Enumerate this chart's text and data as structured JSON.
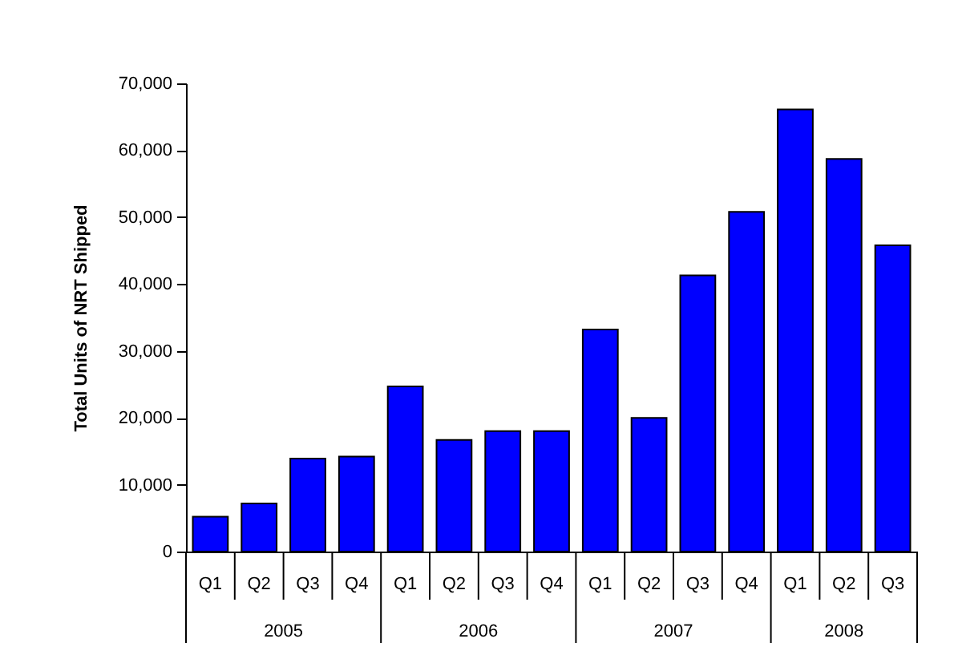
{
  "chart_data": {
    "type": "bar",
    "ylabel": "Total Units of NRT Shipped",
    "categories": [
      "Q1",
      "Q2",
      "Q3",
      "Q4",
      "Q1",
      "Q2",
      "Q3",
      "Q4",
      "Q1",
      "Q2",
      "Q3",
      "Q4",
      "Q1",
      "Q2",
      "Q3"
    ],
    "values": [
      5200,
      7200,
      13900,
      14200,
      24700,
      16700,
      18000,
      18000,
      33200,
      20000,
      41300,
      50800,
      66100,
      58700,
      45800
    ],
    "color": "#0000ff",
    "ylim": [
      0,
      70000
    ],
    "yticks": [
      0,
      {
        "value": 10000,
        "label": "10,000"
      },
      {
        "value": 20000,
        "label": "20,000"
      },
      {
        "value": 30000,
        "label": "30,000"
      },
      {
        "value": 40000,
        "label": "40,000"
      },
      {
        "value": 50000,
        "label": "50,000"
      },
      {
        "value": 60000,
        "label": "60,000"
      },
      {
        "value": 70000,
        "label": "70,000"
      }
    ],
    "annotations": [
      "2005",
      "2006",
      "2007",
      "2008"
    ]
  }
}
